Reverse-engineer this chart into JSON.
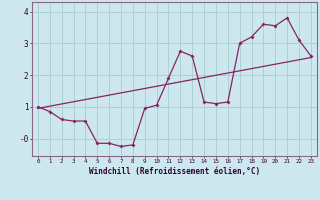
{
  "xlabel": "Windchill (Refroidissement éolien,°C)",
  "bg_color": "#cce8ee",
  "grid_color": "#aacccc",
  "line_color": "#882266",
  "spine_color": "#886688",
  "xlim": [
    -0.5,
    23.5
  ],
  "ylim": [
    -0.55,
    4.3
  ],
  "xticks": [
    0,
    1,
    2,
    3,
    4,
    5,
    6,
    7,
    8,
    9,
    10,
    11,
    12,
    13,
    14,
    15,
    16,
    17,
    18,
    19,
    20,
    21,
    22,
    23
  ],
  "yticks": [
    0.0,
    1.0,
    2.0,
    3.0,
    4.0
  ],
  "ytick_labels": [
    "-0",
    "1",
    "2",
    "3",
    "4"
  ],
  "line1_x": [
    0,
    1,
    2,
    3,
    4,
    5,
    6,
    7,
    8,
    9,
    10,
    11,
    12,
    13,
    14,
    15,
    16,
    17,
    18,
    19,
    20,
    21,
    22,
    23
  ],
  "line1_y": [
    1.0,
    0.85,
    0.6,
    0.55,
    0.55,
    -0.15,
    -0.15,
    -0.25,
    -0.2,
    0.95,
    1.05,
    1.9,
    2.75,
    2.6,
    1.15,
    1.1,
    1.15,
    3.0,
    3.2,
    3.6,
    3.55,
    3.8,
    3.1,
    2.6
  ],
  "line2_x": [
    0,
    23
  ],
  "line2_y": [
    0.95,
    2.55
  ]
}
